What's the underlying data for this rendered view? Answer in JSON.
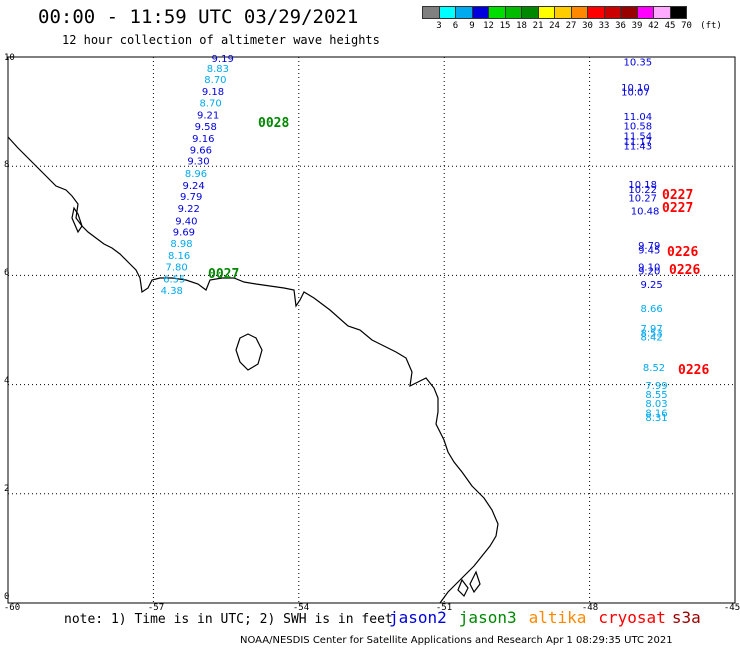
{
  "header": {
    "title": "00:00 - 11:59 UTC 03/29/2021",
    "subtitle": "12 hour collection of altimeter wave heights"
  },
  "colorbar": {
    "colors": [
      "#808080",
      "#00ffff",
      "#00aaee",
      "#0000dd",
      "#00dd00",
      "#00bb00",
      "#008800",
      "#ffff00",
      "#ffcc00",
      "#ff8800",
      "#ff0000",
      "#cc0000",
      "#990000",
      "#ff00ff",
      "#ffaaff",
      "#000000"
    ],
    "labels": [
      "3",
      "6",
      "9",
      "12",
      "15",
      "18",
      "21",
      "24",
      "27",
      "30",
      "33",
      "36",
      "39",
      "42",
      "45",
      "70"
    ],
    "unit": "(ft)"
  },
  "axes": {
    "x_ticks": [
      "-60",
      "-57",
      "-54",
      "-51",
      "-48",
      "-45"
    ],
    "y_ticks": [
      "10",
      "8",
      "6",
      "4",
      "2",
      "0"
    ]
  },
  "colors": {
    "jason2": "#0000dd",
    "jason3": "#008800",
    "altika": "#ff8800",
    "cryosat": "#ff0000",
    "s3a": "#990000",
    "swh_6_9": "#00aaee",
    "swh_9_12": "#0000dd",
    "coast": "#000000"
  },
  "time_labels": [
    {
      "text": "0028",
      "color": "#008800"
    },
    {
      "text": "0027",
      "color": "#008800"
    },
    {
      "text": "0227",
      "color": "#ff0000"
    },
    {
      "text": "0227",
      "color": "#ff0000"
    },
    {
      "text": "0226",
      "color": "#ff0000"
    },
    {
      "text": "0226",
      "color": "#ff0000"
    },
    {
      "text": "0226",
      "color": "#ff0000"
    }
  ],
  "track_left": [
    {
      "v": "9.19",
      "lat": 9.98,
      "lon": -55.8
    },
    {
      "v": "8.83",
      "lat": 9.8,
      "lon": -55.9
    },
    {
      "v": "8.70",
      "lat": 9.6,
      "lon": -55.95
    },
    {
      "v": "9.18",
      "lat": 9.38,
      "lon": -56.0
    },
    {
      "v": "8.70",
      "lat": 9.17,
      "lon": -56.05
    },
    {
      "v": "9.21",
      "lat": 8.95,
      "lon": -56.1
    },
    {
      "v": "9.58",
      "lat": 8.74,
      "lon": -56.15
    },
    {
      "v": "9.16",
      "lat": 8.52,
      "lon": -56.2
    },
    {
      "v": "9.66",
      "lat": 8.31,
      "lon": -56.25
    },
    {
      "v": "9.30",
      "lat": 8.1,
      "lon": -56.3
    },
    {
      "v": "8.96",
      "lat": 7.88,
      "lon": -56.35
    },
    {
      "v": "9.24",
      "lat": 7.66,
      "lon": -56.4
    },
    {
      "v": "9.79",
      "lat": 7.45,
      "lon": -56.45
    },
    {
      "v": "9.22",
      "lat": 7.23,
      "lon": -56.5
    },
    {
      "v": "9.40",
      "lat": 7.01,
      "lon": -56.55
    },
    {
      "v": "9.69",
      "lat": 6.8,
      "lon": -56.6
    },
    {
      "v": "8.98",
      "lat": 6.59,
      "lon": -56.65
    },
    {
      "v": "8.16",
      "lat": 6.37,
      "lon": -56.7
    },
    {
      "v": "7.80",
      "lat": 6.16,
      "lon": -56.75
    },
    {
      "v": "6.55",
      "lat": 5.94,
      "lon": -56.8
    },
    {
      "v": "4.38",
      "lat": 5.73,
      "lon": -56.85
    }
  ],
  "track_right": [
    {
      "v": "10.35",
      "lat": 9.92,
      "lon": -47.3
    },
    {
      "v": "10.10",
      "lat": 9.45,
      "lon": -47.35
    },
    {
      "v": "10.07",
      "lat": 9.37,
      "lon": -47.35
    },
    {
      "v": "11.04",
      "lat": 8.92,
      "lon": -47.3
    },
    {
      "v": "10.58",
      "lat": 8.75,
      "lon": -47.3
    },
    {
      "v": "11.54",
      "lat": 8.56,
      "lon": -47.3
    },
    {
      "v": "11.17",
      "lat": 8.46,
      "lon": -47.3
    },
    {
      "v": "11.43",
      "lat": 8.38,
      "lon": -47.3
    },
    {
      "v": "10.18",
      "lat": 7.67,
      "lon": -47.2
    },
    {
      "v": "10.22",
      "lat": 7.58,
      "lon": -47.2
    },
    {
      "v": "10.27",
      "lat": 7.43,
      "lon": -47.2
    },
    {
      "v": "10.48",
      "lat": 7.19,
      "lon": -47.15
    },
    {
      "v": "9.79",
      "lat": 6.56,
      "lon": -47.0
    },
    {
      "v": "9.45",
      "lat": 6.47,
      "lon": -47.0
    },
    {
      "v": "9.10",
      "lat": 6.16,
      "lon": -47.0
    },
    {
      "v": "9.20",
      "lat": 6.09,
      "lon": -47.0
    },
    {
      "v": "9.25",
      "lat": 5.84,
      "lon": -46.95
    },
    {
      "v": "8.66",
      "lat": 5.4,
      "lon": -46.95
    },
    {
      "v": "7.97",
      "lat": 5.04,
      "lon": -46.95
    },
    {
      "v": "8.53",
      "lat": 4.95,
      "lon": -46.95
    },
    {
      "v": "8.42",
      "lat": 4.88,
      "lon": -46.95
    },
    {
      "v": "8.52",
      "lat": 4.32,
      "lon": -46.9
    },
    {
      "v": "7.99",
      "lat": 3.99,
      "lon": -46.85
    },
    {
      "v": "8.55",
      "lat": 3.83,
      "lon": -46.85
    },
    {
      "v": "8.03",
      "lat": 3.66,
      "lon": -46.85
    },
    {
      "v": "8.16",
      "lat": 3.49,
      "lon": -46.85
    },
    {
      "v": "8.31",
      "lat": 3.41,
      "lon": -46.85
    }
  ],
  "note": "note: 1) Time is in UTC; 2) SWH is in feet",
  "legend": {
    "jason2": "jason2",
    "jason3": "jason3",
    "altika": "altika",
    "cryosat": "cryosat",
    "s3a": "s3a"
  },
  "footer": "NOAA/NESDIS Center for Satellite Applications and Research   Apr  1 08:29:35 UTC 2021"
}
